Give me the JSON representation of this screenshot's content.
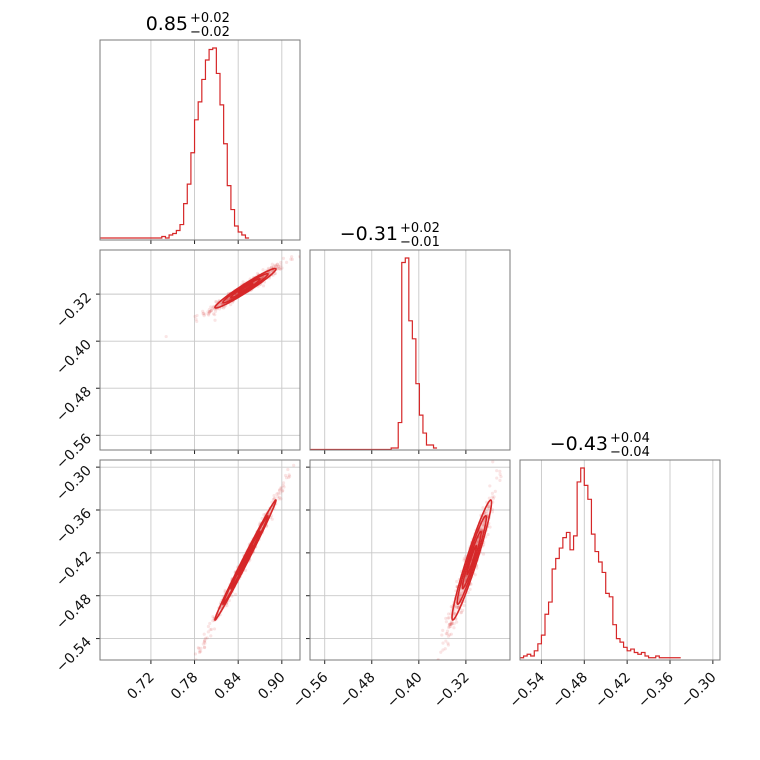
{
  "chart_data": {
    "type": "corner",
    "color": "#d62728",
    "parameters": [
      {
        "title": "0.85",
        "plus": "+0.02",
        "minus": "−0.02",
        "range": [
          0.65,
          0.925
        ],
        "ticks": [
          0.72,
          0.78,
          0.84,
          0.9
        ],
        "tick_labels": [
          "0.72",
          "0.78",
          "0.84",
          "0.90"
        ]
      },
      {
        "title": "−0.31",
        "plus": "+0.02",
        "minus": "−0.01",
        "range": [
          -0.585,
          -0.245
        ],
        "ticks": [
          -0.56,
          -0.48,
          -0.4,
          -0.32
        ],
        "tick_labels": [
          "−0.56",
          "−0.48",
          "−0.40",
          "−0.32"
        ]
      },
      {
        "title": "−0.43",
        "plus": "+0.04",
        "minus": "−0.04",
        "range": [
          -0.57,
          -0.29
        ],
        "ticks": [
          -0.54,
          -0.48,
          -0.42,
          -0.36,
          -0.3
        ],
        "tick_labels": [
          "−0.54",
          "−0.48",
          "−0.42",
          "−0.36",
          "−0.30"
        ]
      }
    ],
    "histograms": [
      {
        "param": 0,
        "bin_start": 0.65,
        "bin_width": 0.005,
        "counts": [
          1,
          1,
          1,
          1,
          1,
          1,
          1,
          1,
          1,
          1,
          1,
          1,
          1,
          1,
          1,
          1,
          1,
          2,
          1,
          3,
          4,
          6,
          10,
          24,
          37,
          58,
          80,
          92,
          107,
          120,
          127,
          128,
          111,
          90,
          64,
          36,
          20,
          9,
          5,
          3,
          1
        ]
      },
      {
        "param": 1,
        "bin_start": -0.585,
        "bin_width": 0.006,
        "counts": [
          0,
          0,
          0,
          0,
          0,
          0,
          0,
          0,
          0,
          0,
          0,
          0,
          0,
          0,
          0,
          0,
          0,
          0,
          0,
          0,
          0,
          0,
          0,
          1,
          1,
          18,
          125,
          128,
          86,
          74,
          44,
          23,
          11,
          3,
          3,
          1
        ]
      },
      {
        "param": 2,
        "bin_start": -0.57,
        "bin_width": 0.005,
        "counts": [
          1,
          2,
          3,
          2,
          5,
          9,
          14,
          26,
          33,
          52,
          58,
          64,
          70,
          73,
          63,
          71,
          102,
          110,
          100,
          92,
          72,
          62,
          56,
          50,
          38,
          36,
          20,
          12,
          10,
          7,
          5,
          6,
          4,
          3,
          4,
          2,
          1,
          1,
          2,
          1,
          1,
          1,
          1,
          1,
          1
        ]
      }
    ],
    "pairs": [
      {
        "x_param": 0,
        "y_param": 1,
        "center": [
          0.85,
          -0.31
        ],
        "sigma": [
          0.02,
          0.016
        ],
        "correlation": 0.97
      },
      {
        "x_param": 0,
        "y_param": 2,
        "center": [
          0.85,
          -0.43
        ],
        "sigma": [
          0.02,
          0.04
        ],
        "correlation": 0.995
      },
      {
        "x_param": 1,
        "y_param": 2,
        "center": [
          -0.31,
          -0.43
        ],
        "sigma": [
          0.016,
          0.04
        ],
        "correlation": 0.96
      }
    ]
  }
}
